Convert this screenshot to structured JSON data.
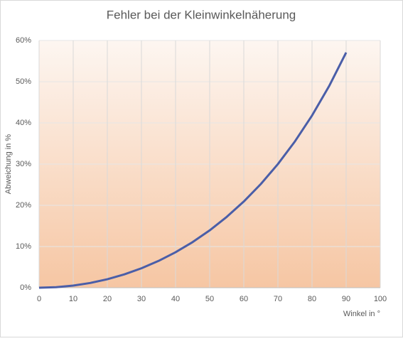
{
  "chart_data": {
    "type": "line",
    "title": "Fehler bei der Kleinwinkelnäherung",
    "x_label": "Winkel in °",
    "y_label": "Abweichung in %",
    "x": [
      0,
      5,
      10,
      15,
      20,
      25,
      30,
      35,
      40,
      45,
      50,
      55,
      60,
      65,
      70,
      75,
      80,
      85,
      90
    ],
    "series": [
      {
        "name": "Abweichung",
        "color": "#4a5ea8",
        "values": [
          0,
          0.13,
          0.51,
          1.15,
          2.06,
          3.25,
          4.72,
          6.5,
          8.61,
          11.07,
          13.92,
          17.19,
          20.92,
          25.17,
          30.01,
          35.52,
          41.78,
          48.92,
          57.08
        ]
      }
    ],
    "xlim": [
      0,
      100
    ],
    "xticks": [
      0,
      10,
      20,
      30,
      40,
      50,
      60,
      70,
      80,
      90,
      100
    ],
    "ylim": [
      0,
      60
    ],
    "yticks": [
      {
        "value": 0,
        "label": "0%"
      },
      {
        "value": 10,
        "label": "10%"
      },
      {
        "value": 20,
        "label": "20%"
      },
      {
        "value": 30,
        "label": "30%"
      },
      {
        "value": 40,
        "label": "40%"
      },
      {
        "value": 50,
        "label": "50%"
      },
      {
        "value": 60,
        "label": "60%"
      }
    ],
    "grid": true
  }
}
